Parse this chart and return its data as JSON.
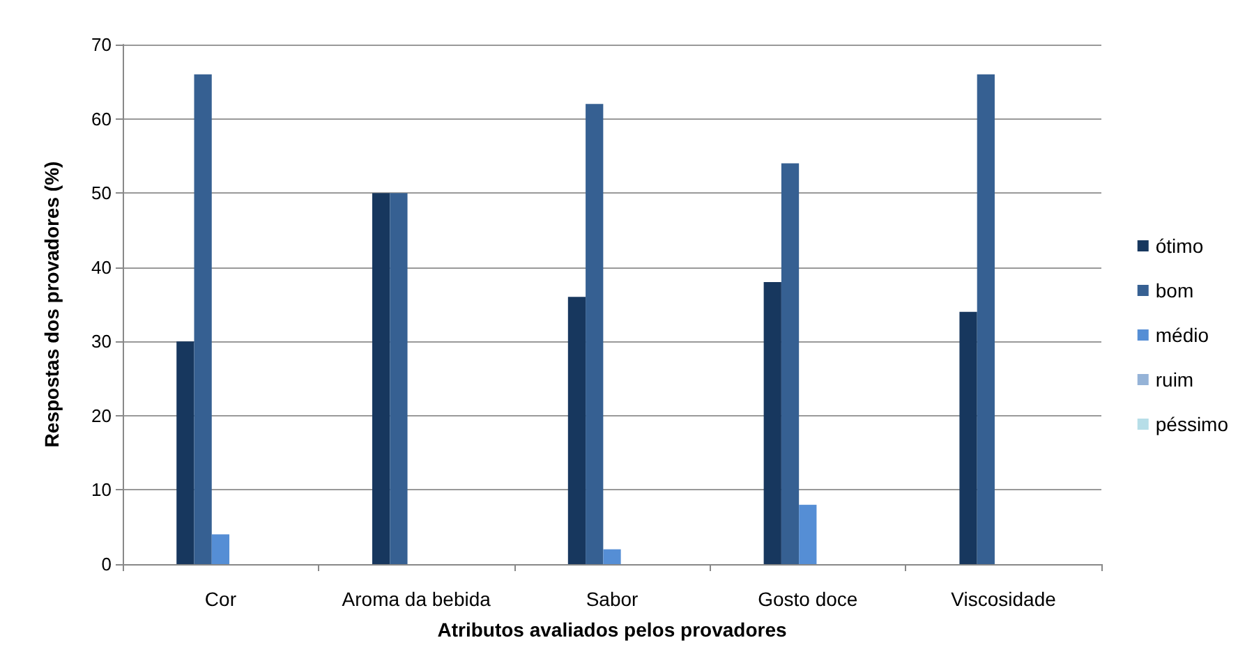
{
  "chart_data": {
    "type": "bar",
    "xlabel": "Atributos avaliados pelos provadores",
    "ylabel": "Respostas dos provadores (%)",
    "categories": [
      "Cor",
      "Aroma da bebida",
      "Sabor",
      "Gosto doce",
      "Viscosidade"
    ],
    "series": [
      {
        "name": "ótimo",
        "color": "#17375e",
        "values": [
          30,
          50,
          36,
          38,
          34
        ]
      },
      {
        "name": "bom",
        "color": "#366092",
        "values": [
          66,
          50,
          62,
          54,
          66
        ]
      },
      {
        "name": "médio",
        "color": "#558ed5",
        "values": [
          4,
          0,
          2,
          8,
          0
        ]
      },
      {
        "name": "ruim",
        "color": "#95b3d7",
        "values": [
          0,
          0,
          0,
          0,
          0
        ]
      },
      {
        "name": "péssimo",
        "color": "#b7dee8",
        "values": [
          0,
          0,
          0,
          0,
          0
        ]
      }
    ],
    "ylim": [
      0,
      70
    ],
    "yticks": [
      0,
      10,
      20,
      30,
      40,
      50,
      60,
      70
    ],
    "grid": "y",
    "legend": "right"
  }
}
